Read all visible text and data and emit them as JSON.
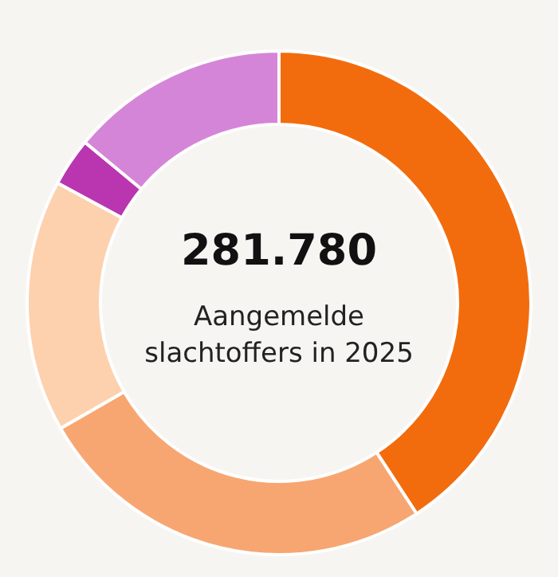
{
  "chart_data": {
    "type": "donut",
    "title": "281.780",
    "subtitle": "Aangemelde slachtoffers in 2025",
    "categories": [
      null,
      null,
      null,
      null,
      null
    ],
    "values": [
      40.8,
      25.9,
      16.2,
      3.1,
      14.0
    ],
    "colors": [
      "#f26c0d",
      "#f7a672",
      "#fdd1ae",
      "#b936b0",
      "#d585d8"
    ]
  }
}
